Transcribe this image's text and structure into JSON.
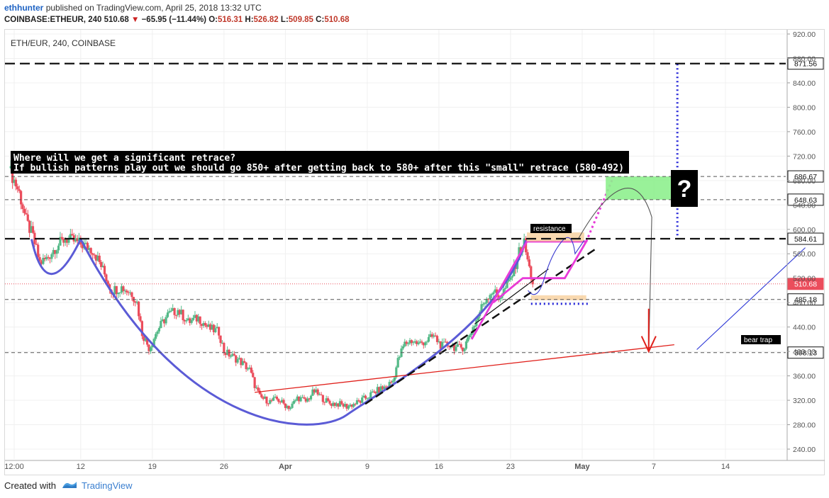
{
  "header": {
    "author": "ethhunter",
    "published_text": "published on TradingView.com, April 25, 2018 13:32 UTC",
    "symbol": "COINBASE:ETHEUR, 240",
    "last": "510.68",
    "change": "−65.95 (−11.44%)",
    "open_label": "O:",
    "open": "516.31",
    "high_label": "H:",
    "high": "526.82",
    "low_label": "L:",
    "low": "509.85",
    "close_label": "C:",
    "close": "510.68",
    "arrow_icon": "triangle-down-icon"
  },
  "chart_label": "ETH/EUR, 240, COINBASE",
  "annotation": {
    "line1": "Where will we get a significant retrace?",
    "line2": "If bullish patterns play out we should go 850+ after getting back to 580+ after this \"small\" retrace (580-492)"
  },
  "labels": {
    "resistance": "resistance",
    "bear_trap": "bear trap",
    "question": "?"
  },
  "footer": {
    "created_with": "Created with",
    "brand": "TradingView"
  },
  "colors": {
    "up": "#53b987",
    "down": "#eb4d5c",
    "cup": "#5b5bd6",
    "magenta": "#e83ad8",
    "trend_red": "#e0201b",
    "target_green": "#8ef08e",
    "dotted_blue": "#2323d8",
    "axis_text": "#555555"
  },
  "chart_data": {
    "type": "candlestick",
    "title": "ETH/EUR, 240, COINBASE",
    "ylim": [
      220,
      930
    ],
    "y_ticks": [
      240,
      280,
      320,
      360,
      400,
      440,
      480,
      520,
      560,
      600,
      640,
      680,
      720,
      760,
      800,
      840,
      880,
      920
    ],
    "y_tick_labels": [
      "240.00",
      "280.00",
      "320.00",
      "360.00",
      "400.00",
      "440.00",
      "480.00",
      "520.00",
      "560.00",
      "600.00",
      "640.00",
      "680.00",
      "720.00",
      "760.00",
      "800.00",
      "840.00",
      "880.00",
      "920.00"
    ],
    "x_ticks": [
      "12:00",
      "12",
      "19",
      "26",
      "Apr",
      "9",
      "16",
      "23",
      "May",
      "7",
      "14"
    ],
    "x_tick_days": [
      5.5,
      12,
      19,
      26,
      32,
      40,
      47,
      54,
      61,
      68,
      75
    ],
    "x_range_days": [
      5,
      83
    ],
    "price_levels": [
      {
        "value": 871.56,
        "label": "871.56",
        "style": "dashed-bold"
      },
      {
        "value": 686.67,
        "label": "686.67",
        "style": "dashed-thin"
      },
      {
        "value": 648.63,
        "label": "648.63",
        "style": "dashed-thin"
      },
      {
        "value": 584.61,
        "label": "584.61",
        "style": "dashed-bold"
      },
      {
        "value": 510.68,
        "label": "510.68",
        "style": "current"
      },
      {
        "value": 485.18,
        "label": "485.18",
        "style": "dashed-thin"
      },
      {
        "value": 398.13,
        "label": "398.13",
        "style": "dashed-thin"
      }
    ],
    "close_path": [
      {
        "day": 5.0,
        "price": 700
      },
      {
        "day": 6.0,
        "price": 660
      },
      {
        "day": 6.7,
        "price": 612
      },
      {
        "day": 7.3,
        "price": 590
      },
      {
        "day": 8.0,
        "price": 545
      },
      {
        "day": 8.7,
        "price": 552
      },
      {
        "day": 9.5,
        "price": 570
      },
      {
        "day": 10.5,
        "price": 585
      },
      {
        "day": 11.5,
        "price": 580
      },
      {
        "day": 12.5,
        "price": 572
      },
      {
        "day": 13.2,
        "price": 566
      },
      {
        "day": 14.0,
        "price": 540
      },
      {
        "day": 15.0,
        "price": 500
      },
      {
        "day": 16.0,
        "price": 505
      },
      {
        "day": 17.0,
        "price": 495
      },
      {
        "day": 17.5,
        "price": 480
      },
      {
        "day": 18.0,
        "price": 430
      },
      {
        "day": 18.7,
        "price": 405
      },
      {
        "day": 19.5,
        "price": 435
      },
      {
        "day": 20.5,
        "price": 460
      },
      {
        "day": 21.5,
        "price": 468
      },
      {
        "day": 22.5,
        "price": 448
      },
      {
        "day": 23.5,
        "price": 455
      },
      {
        "day": 24.5,
        "price": 438
      },
      {
        "day": 25.5,
        "price": 432
      },
      {
        "day": 26.0,
        "price": 400
      },
      {
        "day": 26.5,
        "price": 395
      },
      {
        "day": 27.5,
        "price": 385
      },
      {
        "day": 28.5,
        "price": 370
      },
      {
        "day": 29.0,
        "price": 345
      },
      {
        "day": 29.5,
        "price": 325
      },
      {
        "day": 30.5,
        "price": 318
      },
      {
        "day": 31.2,
        "price": 322
      },
      {
        "day": 32.0,
        "price": 312
      },
      {
        "day": 32.5,
        "price": 308
      },
      {
        "day": 33.2,
        "price": 325
      },
      {
        "day": 34.0,
        "price": 318
      },
      {
        "day": 34.8,
        "price": 335
      },
      {
        "day": 35.5,
        "price": 325
      },
      {
        "day": 36.3,
        "price": 315
      },
      {
        "day": 37.2,
        "price": 314
      },
      {
        "day": 38.0,
        "price": 310
      },
      {
        "day": 38.7,
        "price": 314
      },
      {
        "day": 39.3,
        "price": 318
      },
      {
        "day": 40.2,
        "price": 328
      },
      {
        "day": 41.0,
        "price": 336
      },
      {
        "day": 41.8,
        "price": 342
      },
      {
        "day": 42.5,
        "price": 352
      },
      {
        "day": 43.0,
        "price": 385
      },
      {
        "day": 43.6,
        "price": 412
      },
      {
        "day": 44.3,
        "price": 418
      },
      {
        "day": 45.0,
        "price": 412
      },
      {
        "day": 45.8,
        "price": 418
      },
      {
        "day": 46.5,
        "price": 425
      },
      {
        "day": 47.3,
        "price": 408
      },
      {
        "day": 48.0,
        "price": 412
      },
      {
        "day": 48.8,
        "price": 405
      },
      {
        "day": 49.5,
        "price": 408
      },
      {
        "day": 50.0,
        "price": 428
      },
      {
        "day": 50.7,
        "price": 452
      },
      {
        "day": 51.3,
        "price": 478
      },
      {
        "day": 51.8,
        "price": 492
      },
      {
        "day": 52.3,
        "price": 500
      },
      {
        "day": 52.8,
        "price": 488
      },
      {
        "day": 53.3,
        "price": 498
      },
      {
        "day": 53.8,
        "price": 512
      },
      {
        "day": 54.3,
        "price": 532
      },
      {
        "day": 54.8,
        "price": 562
      },
      {
        "day": 55.3,
        "price": 580
      },
      {
        "day": 55.6,
        "price": 555
      },
      {
        "day": 55.9,
        "price": 530
      },
      {
        "day": 56.2,
        "price": 510.68
      }
    ]
  }
}
